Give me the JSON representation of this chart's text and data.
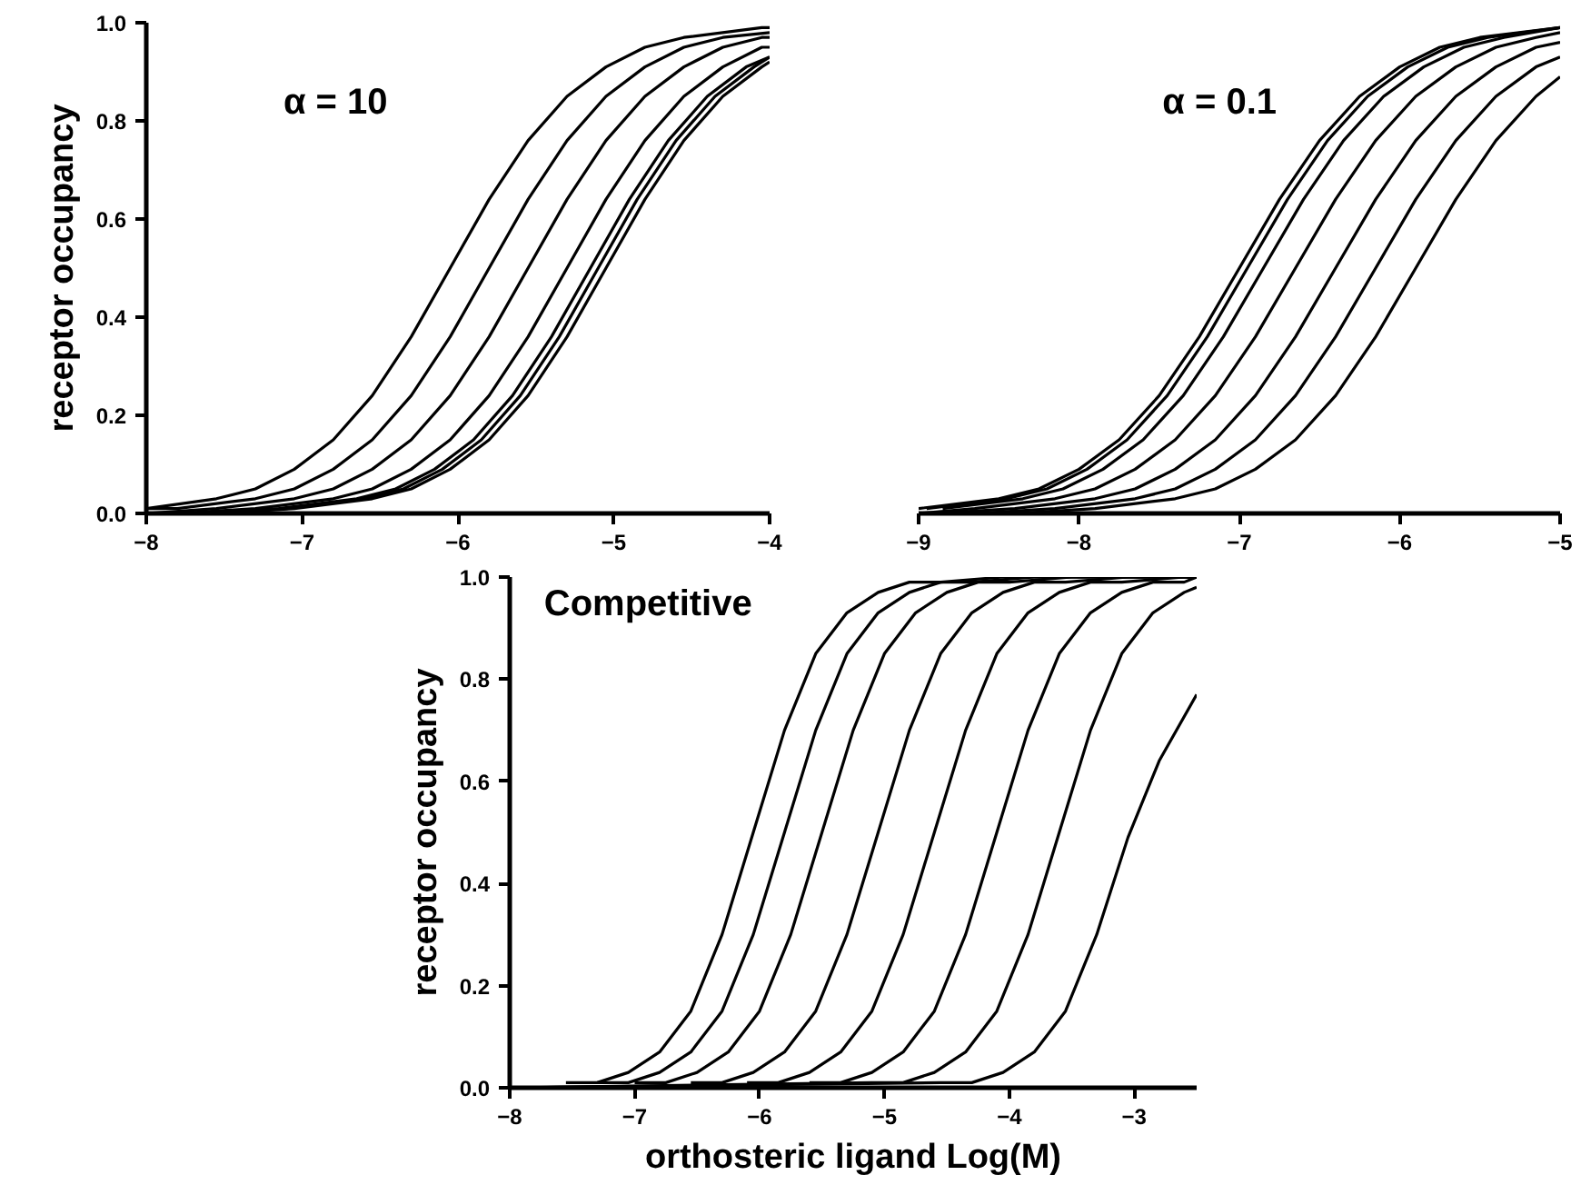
{
  "chart_data": [
    {
      "type": "line",
      "ylabel": "receptor occupancy",
      "xlim": [
        -8,
        -4
      ],
      "ylim": [
        0,
        1
      ],
      "xticks": [
        {
          "value": -8,
          "label": "−8"
        },
        {
          "value": -7,
          "label": "−7"
        },
        {
          "value": -6,
          "label": "−6"
        },
        {
          "value": -5,
          "label": "−5"
        },
        {
          "value": -4,
          "label": "−4"
        }
      ],
      "yticks": [
        {
          "value": 0,
          "label": "0.0"
        },
        {
          "value": 0.2,
          "label": "0.2"
        },
        {
          "value": 0.4,
          "label": "0.4"
        },
        {
          "value": 0.6,
          "label": "0.6"
        },
        {
          "value": 0.8,
          "label": "0.8"
        },
        {
          "value": 1,
          "label": "1.0"
        }
      ],
      "annotations": [
        "α = 10"
      ],
      "series": [
        {
          "color": "#000000",
          "x": [
            -8,
            -7.55,
            -7.3,
            -7.05,
            -6.8,
            -6.55,
            -6.3,
            -6.05,
            -5.8,
            -5.55,
            -5.3,
            -5.05,
            -4.8,
            -4.55,
            -4.05,
            -4
          ],
          "values": [
            0.01,
            0.03,
            0.05,
            0.09,
            0.15,
            0.24,
            0.36,
            0.5,
            0.64,
            0.76,
            0.85,
            0.91,
            0.95,
            0.97,
            0.99,
            0.99
          ]
        },
        {
          "color": "#000000",
          "x": [
            -8,
            -7.8,
            -7.3,
            -7.05,
            -6.8,
            -6.55,
            -6.3,
            -6.05,
            -5.8,
            -5.55,
            -5.3,
            -5.05,
            -4.8,
            -4.55,
            -4.3,
            -4
          ],
          "values": [
            0.01,
            0.01,
            0.03,
            0.05,
            0.09,
            0.15,
            0.24,
            0.36,
            0.5,
            0.64,
            0.76,
            0.85,
            0.91,
            0.95,
            0.97,
            0.98
          ]
        },
        {
          "color": "#000000",
          "x": [
            -8,
            -7.55,
            -7.05,
            -6.8,
            -6.55,
            -6.3,
            -6.05,
            -5.8,
            -5.55,
            -5.3,
            -5.05,
            -4.8,
            -4.55,
            -4.3,
            -4.05,
            -4
          ],
          "values": [
            0,
            0.01,
            0.03,
            0.05,
            0.09,
            0.15,
            0.24,
            0.36,
            0.5,
            0.64,
            0.76,
            0.85,
            0.91,
            0.95,
            0.97,
            0.97
          ]
        },
        {
          "color": "#000000",
          "x": [
            -8,
            -7.8,
            -7.3,
            -6.8,
            -6.55,
            -6.3,
            -6.05,
            -5.8,
            -5.55,
            -5.3,
            -5.05,
            -4.8,
            -4.55,
            -4.3,
            -4.05,
            -4
          ],
          "values": [
            0,
            0,
            0.01,
            0.03,
            0.05,
            0.09,
            0.15,
            0.24,
            0.36,
            0.5,
            0.64,
            0.76,
            0.85,
            0.91,
            0.95,
            0.95
          ]
        },
        {
          "color": "#000000",
          "x": [
            -8,
            -7.65,
            -7.15,
            -6.65,
            -6.4,
            -6.15,
            -5.9,
            -5.65,
            -5.4,
            -5.15,
            -4.9,
            -4.65,
            -4.4,
            -4.15,
            -4
          ],
          "values": [
            0,
            0,
            0.01,
            0.03,
            0.05,
            0.09,
            0.15,
            0.24,
            0.36,
            0.5,
            0.64,
            0.76,
            0.85,
            0.91,
            0.93
          ]
        },
        {
          "color": "#000000",
          "x": [
            -7.6,
            -7.1,
            -6.6,
            -6.35,
            -6.1,
            -5.85,
            -5.6,
            -5.35,
            -5.1,
            -4.85,
            -4.6,
            -4.35,
            -4.1,
            -4
          ],
          "values": [
            0,
            0.01,
            0.03,
            0.05,
            0.09,
            0.15,
            0.24,
            0.36,
            0.5,
            0.64,
            0.76,
            0.85,
            0.91,
            0.93
          ]
        },
        {
          "color": "#000000",
          "x": [
            -8,
            -7.55,
            -7.05,
            -6.55,
            -6.3,
            -6.05,
            -5.8,
            -5.55,
            -5.3,
            -5.05,
            -4.8,
            -4.55,
            -4.3,
            -4.05,
            -4
          ],
          "values": [
            0,
            0,
            0.01,
            0.03,
            0.05,
            0.09,
            0.15,
            0.24,
            0.36,
            0.5,
            0.64,
            0.76,
            0.85,
            0.91,
            0.92
          ]
        }
      ]
    },
    {
      "type": "line",
      "tick_labels": "x",
      "xlim": [
        -9,
        -5
      ],
      "ylim": [
        0,
        1
      ],
      "xticks": [
        {
          "value": -9,
          "label": "−9"
        },
        {
          "value": -8,
          "label": "−8"
        },
        {
          "value": -7,
          "label": "−7"
        },
        {
          "value": -6,
          "label": "−6"
        },
        {
          "value": -5,
          "label": "−5"
        }
      ],
      "annotations": [
        "α = 0.1"
      ],
      "series": [
        {
          "color": "#000000",
          "x": [
            -9,
            -8.5,
            -8.25,
            -8,
            -7.75,
            -7.5,
            -7.25,
            -7,
            -6.75,
            -6.5,
            -6.25,
            -6,
            -5.75,
            -5.5,
            -5
          ],
          "values": [
            0.01,
            0.03,
            0.05,
            0.09,
            0.15,
            0.24,
            0.36,
            0.5,
            0.64,
            0.76,
            0.85,
            0.91,
            0.95,
            0.97,
            0.99
          ]
        },
        {
          "color": "#000000",
          "x": [
            -8.95,
            -8.45,
            -8.2,
            -7.95,
            -7.7,
            -7.45,
            -7.2,
            -6.95,
            -6.7,
            -6.45,
            -6.2,
            -5.95,
            -5.7,
            -5.45,
            -5
          ],
          "values": [
            0.01,
            0.03,
            0.05,
            0.09,
            0.15,
            0.24,
            0.36,
            0.5,
            0.64,
            0.76,
            0.85,
            0.91,
            0.95,
            0.97,
            0.99
          ]
        },
        {
          "color": "#000000",
          "x": [
            -8.85,
            -8.35,
            -8.1,
            -7.85,
            -7.6,
            -7.35,
            -7.1,
            -6.85,
            -6.6,
            -6.35,
            -6.1,
            -5.85,
            -5.6,
            -5.35,
            -5
          ],
          "values": [
            0.01,
            0.03,
            0.05,
            0.09,
            0.15,
            0.24,
            0.36,
            0.5,
            0.64,
            0.76,
            0.85,
            0.91,
            0.95,
            0.97,
            0.99
          ]
        },
        {
          "color": "#000000",
          "x": [
            -9,
            -8.65,
            -8.15,
            -7.9,
            -7.65,
            -7.4,
            -7.15,
            -6.9,
            -6.65,
            -6.4,
            -6.15,
            -5.9,
            -5.65,
            -5.4,
            -5.15,
            -5
          ],
          "values": [
            0,
            0.01,
            0.03,
            0.05,
            0.09,
            0.15,
            0.24,
            0.36,
            0.5,
            0.64,
            0.76,
            0.85,
            0.91,
            0.95,
            0.97,
            0.98
          ]
        },
        {
          "color": "#000000",
          "x": [
            -9,
            -8.9,
            -8.4,
            -7.9,
            -7.65,
            -7.4,
            -7.15,
            -6.9,
            -6.65,
            -6.4,
            -6.15,
            -5.9,
            -5.65,
            -5.4,
            -5.15,
            -5
          ],
          "values": [
            0,
            0,
            0.01,
            0.03,
            0.05,
            0.09,
            0.15,
            0.24,
            0.36,
            0.5,
            0.64,
            0.76,
            0.85,
            0.91,
            0.95,
            0.96
          ]
        },
        {
          "color": "#000000",
          "x": [
            -9,
            -8.65,
            -8.15,
            -7.65,
            -7.4,
            -7.15,
            -6.9,
            -6.65,
            -6.4,
            -6.15,
            -5.9,
            -5.65,
            -5.4,
            -5.15,
            -5
          ],
          "values": [
            0,
            0,
            0.01,
            0.03,
            0.05,
            0.09,
            0.15,
            0.24,
            0.36,
            0.5,
            0.64,
            0.76,
            0.85,
            0.91,
            0.93
          ]
        },
        {
          "color": "#000000",
          "x": [
            -9,
            -8.4,
            -7.9,
            -7.4,
            -7.15,
            -6.9,
            -6.65,
            -6.4,
            -6.15,
            -5.9,
            -5.65,
            -5.4,
            -5.15,
            -5
          ],
          "values": [
            0,
            0,
            0.01,
            0.03,
            0.05,
            0.09,
            0.15,
            0.24,
            0.36,
            0.5,
            0.64,
            0.76,
            0.85,
            0.89
          ]
        }
      ]
    },
    {
      "type": "line",
      "ylabel": "receptor occupancy",
      "xlabel": "orthosteric ligand Log(M)",
      "xlim": [
        -8,
        -2.5
      ],
      "ylim": [
        0,
        1
      ],
      "xticks": [
        {
          "value": -8,
          "label": "−8"
        },
        {
          "value": -7,
          "label": "−7"
        },
        {
          "value": -6,
          "label": "−6"
        },
        {
          "value": -5,
          "label": "−5"
        },
        {
          "value": -4,
          "label": "−4"
        },
        {
          "value": -3,
          "label": "−3"
        }
      ],
      "yticks": [
        {
          "value": 0,
          "label": "0.0"
        },
        {
          "value": 0.2,
          "label": "0.2"
        },
        {
          "value": 0.4,
          "label": "0.4"
        },
        {
          "value": 0.6,
          "label": "0.6"
        },
        {
          "value": 0.8,
          "label": "0.8"
        },
        {
          "value": 1,
          "label": "1.0"
        }
      ],
      "annotations": [
        "Competitive"
      ],
      "series": [
        {
          "color": "#000000",
          "x": [
            -7.55,
            -7.3,
            -7.05,
            -6.8,
            -6.55,
            -6.3,
            -6.05,
            -5.8,
            -5.55,
            -5.3,
            -5.05,
            -4.8,
            -4.55,
            -4.05,
            -2.5
          ],
          "values": [
            0.01,
            0.01,
            0.03,
            0.07,
            0.15,
            0.3,
            0.5,
            0.7,
            0.85,
            0.93,
            0.97,
            0.99,
            0.99,
            1,
            1
          ]
        },
        {
          "color": "#000000",
          "x": [
            -7.3,
            -7.05,
            -6.8,
            -6.55,
            -6.3,
            -6.05,
            -5.8,
            -5.55,
            -5.3,
            -5.05,
            -4.8,
            -4.55,
            -4.3,
            -3.8,
            -2.5
          ],
          "values": [
            0.01,
            0.01,
            0.03,
            0.07,
            0.15,
            0.3,
            0.5,
            0.7,
            0.85,
            0.93,
            0.97,
            0.99,
            0.99,
            1,
            1
          ]
        },
        {
          "color": "#000000",
          "x": [
            -7,
            -6.75,
            -6.5,
            -6.25,
            -6,
            -5.75,
            -5.5,
            -5.25,
            -5,
            -4.75,
            -4.5,
            -4.25,
            -4,
            -3.5,
            -2.5
          ],
          "values": [
            0.01,
            0.01,
            0.03,
            0.07,
            0.15,
            0.3,
            0.5,
            0.7,
            0.85,
            0.93,
            0.97,
            0.99,
            0.99,
            1,
            1
          ]
        },
        {
          "color": "#000000",
          "x": [
            -6.55,
            -6.3,
            -6.05,
            -5.8,
            -5.55,
            -5.3,
            -5.05,
            -4.8,
            -4.55,
            -4.3,
            -4.05,
            -3.8,
            -3.55,
            -3.05,
            -2.5
          ],
          "values": [
            0.01,
            0.01,
            0.03,
            0.07,
            0.15,
            0.3,
            0.5,
            0.7,
            0.85,
            0.93,
            0.97,
            0.99,
            0.99,
            1,
            1
          ]
        },
        {
          "color": "#000000",
          "x": [
            -6.1,
            -5.85,
            -5.6,
            -5.35,
            -5.1,
            -4.85,
            -4.6,
            -4.35,
            -4.1,
            -3.85,
            -3.6,
            -3.35,
            -3.1,
            -2.6,
            -2.5
          ],
          "values": [
            0.01,
            0.01,
            0.03,
            0.07,
            0.15,
            0.3,
            0.5,
            0.7,
            0.85,
            0.93,
            0.97,
            0.99,
            0.99,
            1,
            1
          ]
        },
        {
          "color": "#000000",
          "x": [
            -5.6,
            -5.35,
            -5.1,
            -4.85,
            -4.6,
            -4.35,
            -4.1,
            -3.85,
            -3.6,
            -3.35,
            -3.1,
            -2.85,
            -2.6,
            -2.5
          ],
          "values": [
            0.01,
            0.01,
            0.03,
            0.07,
            0.15,
            0.3,
            0.5,
            0.7,
            0.85,
            0.93,
            0.97,
            0.99,
            0.99,
            1
          ]
        },
        {
          "color": "#000000",
          "x": [
            -8,
            -5.1,
            -4.85,
            -4.6,
            -4.35,
            -4.1,
            -3.85,
            -3.6,
            -3.35,
            -3.1,
            -2.85,
            -2.6,
            -2.5
          ],
          "values": [
            0,
            0.01,
            0.01,
            0.03,
            0.07,
            0.15,
            0.3,
            0.5,
            0.7,
            0.85,
            0.93,
            0.97,
            0.98
          ]
        },
        {
          "color": "#000000",
          "x": [
            -8,
            -4.55,
            -4.3,
            -4.05,
            -3.8,
            -3.55,
            -3.3,
            -3.05,
            -2.8,
            -2.5
          ],
          "values": [
            0,
            0.01,
            0.01,
            0.03,
            0.07,
            0.15,
            0.3,
            0.49,
            0.64,
            0.77
          ]
        }
      ]
    }
  ]
}
